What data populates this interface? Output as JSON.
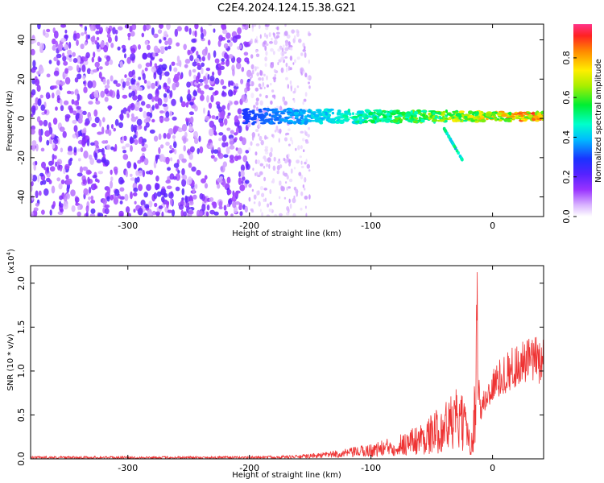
{
  "figure": {
    "title": "C2E4.2024.124.15.38.G21"
  },
  "chart_data": [
    {
      "type": "heatmap",
      "xlabel": "Height of straight line (km)",
      "ylabel": "Frequency (Hz)",
      "xlim": [
        -380,
        42
      ],
      "ylim": [
        -50,
        48
      ],
      "x_ticks": [
        -300,
        -200,
        -100,
        0
      ],
      "y_ticks": [
        -40,
        -20,
        0,
        20,
        40
      ],
      "colorbar": {
        "label": "Normalized spectral amplitude",
        "range": [
          0.0,
          0.97
        ],
        "ticks": [
          0.0,
          0.2,
          0.4,
          0.6,
          0.8
        ],
        "colormap": "rainbow (white-purple-blue-cyan-green-yellow-orange-red)"
      },
      "features": [
        {
          "description": "broadband noise speckle",
          "x_range": [
            -380,
            -200
          ],
          "freq_range": [
            -50,
            48
          ],
          "amplitude": 0.15
        },
        {
          "description": "fading noise speckle",
          "x_range": [
            -200,
            -150
          ],
          "freq_range": [
            -50,
            48
          ],
          "amplitude": 0.07
        },
        {
          "description": "signal band near 0 Hz",
          "x_range": [
            -205,
            42
          ],
          "freq_center": 1,
          "freq_halfwidth": 4,
          "amplitude_start": 0.3,
          "amplitude_end": 0.9
        },
        {
          "description": "branch to negative frequency",
          "x_range": [
            -40,
            -25
          ],
          "freq_range": [
            -5,
            -21
          ],
          "amplitude": 0.35
        }
      ]
    },
    {
      "type": "line",
      "xlabel": "Height of straight line (km)",
      "ylabel": "SNR (10 * v/v)",
      "yscale_label": "(x10",
      "yscale_exp": "4",
      "xlim": [
        -380,
        42
      ],
      "ylim": [
        0,
        2.2
      ],
      "x_ticks": [
        -300,
        -200,
        -100,
        0
      ],
      "y_ticks": [
        0.0,
        0.5,
        1.0,
        1.5,
        2.0
      ],
      "color": "#ee3333",
      "series": [
        {
          "x": [
            -380,
            -300,
            -200,
            -160,
            -140,
            -120,
            -100,
            -80,
            -60,
            -50,
            -40,
            -35,
            -30,
            -25,
            -20,
            -16,
            -14,
            -13,
            -12,
            -10,
            -5,
            0,
            10,
            20,
            30,
            42
          ],
          "y": [
            0.02,
            0.02,
            0.02,
            0.03,
            0.05,
            0.08,
            0.12,
            0.18,
            0.28,
            0.35,
            0.45,
            0.5,
            0.55,
            0.5,
            0.35,
            0.2,
            1.1,
            2.2,
            1.0,
            0.6,
            0.75,
            0.9,
            1.05,
            1.15,
            1.2,
            1.23
          ]
        }
      ]
    }
  ]
}
